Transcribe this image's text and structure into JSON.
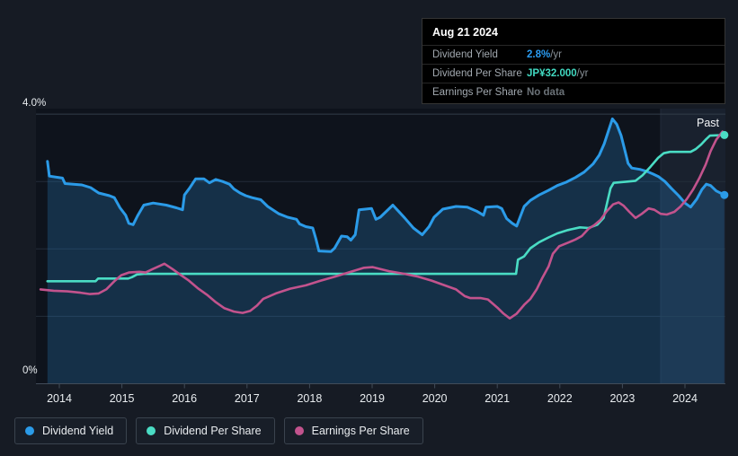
{
  "tooltip": {
    "date": "Aug 21 2024",
    "rows": [
      {
        "label": "Dividend Yield",
        "value": "2.8%",
        "suffix": " /yr",
        "value_color": "#2b9cf2"
      },
      {
        "label": "Dividend Per Share",
        "value": "JP¥32.000",
        "suffix": " /yr",
        "value_color": "#41d8c0"
      },
      {
        "label": "Earnings Per Share",
        "value": "No data",
        "suffix": "",
        "value_color": "#6b7278"
      }
    ]
  },
  "legend": [
    {
      "label": "Dividend Yield",
      "color": "#2b9be8"
    },
    {
      "label": "Dividend Per Share",
      "color": "#4adcc4"
    },
    {
      "label": "Earnings Per Share",
      "color": "#c2538d"
    }
  ],
  "chart_data": {
    "type": "line",
    "title": "Dividend history (yield, dividend per share, earnings per share)",
    "ylabel_top": "4.0%",
    "ylabel_bottom": "0%",
    "ylim": [
      0,
      4
    ],
    "xlim": [
      2013.62,
      2024.65
    ],
    "x_ticks": [
      2014,
      2015,
      2016,
      2017,
      2018,
      2019,
      2020,
      2021,
      2022,
      2023,
      2024
    ],
    "past_label": "Past",
    "past_start": 2023.61,
    "grid": true,
    "legend_position": "bottom",
    "series": [
      {
        "name": "Dividend Yield",
        "color": "#2b9be8",
        "width": 3,
        "fill": "rgba(44,130,201,0.26)",
        "end_marker": true,
        "points": [
          [
            2013.81,
            3.3
          ],
          [
            2013.84,
            3.08
          ],
          [
            2014.05,
            3.05
          ],
          [
            2014.09,
            2.97
          ],
          [
            2014.36,
            2.95
          ],
          [
            2014.5,
            2.91
          ],
          [
            2014.63,
            2.83
          ],
          [
            2014.8,
            2.79
          ],
          [
            2014.88,
            2.76
          ],
          [
            2014.97,
            2.61
          ],
          [
            2015.06,
            2.5
          ],
          [
            2015.11,
            2.38
          ],
          [
            2015.18,
            2.36
          ],
          [
            2015.25,
            2.49
          ],
          [
            2015.35,
            2.65
          ],
          [
            2015.5,
            2.68
          ],
          [
            2015.71,
            2.65
          ],
          [
            2015.87,
            2.61
          ],
          [
            2015.97,
            2.58
          ],
          [
            2016.0,
            2.8
          ],
          [
            2016.08,
            2.9
          ],
          [
            2016.18,
            3.04
          ],
          [
            2016.31,
            3.04
          ],
          [
            2016.4,
            2.98
          ],
          [
            2016.5,
            3.03
          ],
          [
            2016.61,
            3.0
          ],
          [
            2016.72,
            2.96
          ],
          [
            2016.79,
            2.89
          ],
          [
            2016.89,
            2.83
          ],
          [
            2016.98,
            2.79
          ],
          [
            2017.08,
            2.76
          ],
          [
            2017.22,
            2.73
          ],
          [
            2017.33,
            2.63
          ],
          [
            2017.51,
            2.52
          ],
          [
            2017.65,
            2.47
          ],
          [
            2017.79,
            2.44
          ],
          [
            2017.84,
            2.37
          ],
          [
            2017.94,
            2.33
          ],
          [
            2018.05,
            2.31
          ],
          [
            2018.1,
            2.15
          ],
          [
            2018.15,
            1.97
          ],
          [
            2018.34,
            1.96
          ],
          [
            2018.4,
            2.01
          ],
          [
            2018.51,
            2.19
          ],
          [
            2018.6,
            2.18
          ],
          [
            2018.66,
            2.13
          ],
          [
            2018.73,
            2.21
          ],
          [
            2018.79,
            2.58
          ],
          [
            2018.99,
            2.6
          ],
          [
            2019.06,
            2.44
          ],
          [
            2019.13,
            2.47
          ],
          [
            2019.33,
            2.65
          ],
          [
            2019.42,
            2.56
          ],
          [
            2019.52,
            2.46
          ],
          [
            2019.66,
            2.31
          ],
          [
            2019.8,
            2.21
          ],
          [
            2019.91,
            2.33
          ],
          [
            2019.99,
            2.47
          ],
          [
            2020.13,
            2.59
          ],
          [
            2020.34,
            2.63
          ],
          [
            2020.52,
            2.62
          ],
          [
            2020.67,
            2.56
          ],
          [
            2020.78,
            2.5
          ],
          [
            2020.82,
            2.62
          ],
          [
            2021.0,
            2.63
          ],
          [
            2021.07,
            2.6
          ],
          [
            2021.15,
            2.45
          ],
          [
            2021.24,
            2.38
          ],
          [
            2021.31,
            2.34
          ],
          [
            2021.43,
            2.63
          ],
          [
            2021.53,
            2.72
          ],
          [
            2021.67,
            2.8
          ],
          [
            2021.82,
            2.87
          ],
          [
            2021.96,
            2.94
          ],
          [
            2022.1,
            2.99
          ],
          [
            2022.25,
            3.06
          ],
          [
            2022.39,
            3.14
          ],
          [
            2022.53,
            3.26
          ],
          [
            2022.63,
            3.39
          ],
          [
            2022.71,
            3.56
          ],
          [
            2022.78,
            3.76
          ],
          [
            2022.84,
            3.93
          ],
          [
            2022.91,
            3.85
          ],
          [
            2022.98,
            3.68
          ],
          [
            2023.04,
            3.46
          ],
          [
            2023.09,
            3.27
          ],
          [
            2023.15,
            3.2
          ],
          [
            2023.28,
            3.18
          ],
          [
            2023.39,
            3.15
          ],
          [
            2023.49,
            3.11
          ],
          [
            2023.58,
            3.07
          ],
          [
            2023.68,
            3.0
          ],
          [
            2023.78,
            2.9
          ],
          [
            2023.9,
            2.79
          ],
          [
            2024.0,
            2.68
          ],
          [
            2024.09,
            2.62
          ],
          [
            2024.19,
            2.74
          ],
          [
            2024.27,
            2.88
          ],
          [
            2024.34,
            2.96
          ],
          [
            2024.41,
            2.94
          ],
          [
            2024.5,
            2.86
          ],
          [
            2024.63,
            2.8
          ]
        ]
      },
      {
        "name": "Dividend Per Share",
        "color": "#4adcc4",
        "width": 2.6,
        "fill": null,
        "end_marker": true,
        "points": [
          [
            2013.81,
            1.52
          ],
          [
            2014.58,
            1.52
          ],
          [
            2014.62,
            1.56
          ],
          [
            2015.1,
            1.56
          ],
          [
            2015.16,
            1.58
          ],
          [
            2015.24,
            1.62
          ],
          [
            2015.35,
            1.63
          ],
          [
            2021.3,
            1.63
          ],
          [
            2021.33,
            1.84
          ],
          [
            2021.43,
            1.89
          ],
          [
            2021.53,
            2.01
          ],
          [
            2021.67,
            2.1
          ],
          [
            2021.82,
            2.17
          ],
          [
            2021.96,
            2.23
          ],
          [
            2022.13,
            2.28
          ],
          [
            2022.32,
            2.32
          ],
          [
            2022.46,
            2.31
          ],
          [
            2022.6,
            2.36
          ],
          [
            2022.7,
            2.46
          ],
          [
            2022.76,
            2.7
          ],
          [
            2022.81,
            2.9
          ],
          [
            2022.86,
            2.98
          ],
          [
            2023.1,
            3.0
          ],
          [
            2023.21,
            3.01
          ],
          [
            2023.32,
            3.09
          ],
          [
            2023.45,
            3.22
          ],
          [
            2023.57,
            3.35
          ],
          [
            2023.66,
            3.42
          ],
          [
            2023.76,
            3.44
          ],
          [
            2024.09,
            3.44
          ],
          [
            2024.17,
            3.48
          ],
          [
            2024.26,
            3.55
          ],
          [
            2024.34,
            3.63
          ],
          [
            2024.4,
            3.68
          ],
          [
            2024.63,
            3.69
          ]
        ]
      },
      {
        "name": "Earnings Per Share",
        "color": "#c2538d",
        "width": 2.6,
        "fill": null,
        "end_marker": false,
        "points": [
          [
            2013.7,
            1.4
          ],
          [
            2013.91,
            1.38
          ],
          [
            2014.13,
            1.37
          ],
          [
            2014.34,
            1.35
          ],
          [
            2014.49,
            1.33
          ],
          [
            2014.63,
            1.34
          ],
          [
            2014.75,
            1.4
          ],
          [
            2014.88,
            1.52
          ],
          [
            2014.99,
            1.61
          ],
          [
            2015.11,
            1.65
          ],
          [
            2015.28,
            1.66
          ],
          [
            2015.38,
            1.65
          ],
          [
            2015.49,
            1.7
          ],
          [
            2015.61,
            1.75
          ],
          [
            2015.68,
            1.78
          ],
          [
            2015.81,
            1.7
          ],
          [
            2015.93,
            1.62
          ],
          [
            2016.07,
            1.53
          ],
          [
            2016.21,
            1.42
          ],
          [
            2016.36,
            1.32
          ],
          [
            2016.5,
            1.21
          ],
          [
            2016.64,
            1.12
          ],
          [
            2016.79,
            1.07
          ],
          [
            2016.93,
            1.05
          ],
          [
            2017.05,
            1.08
          ],
          [
            2017.16,
            1.16
          ],
          [
            2017.26,
            1.26
          ],
          [
            2017.46,
            1.34
          ],
          [
            2017.69,
            1.41
          ],
          [
            2017.94,
            1.46
          ],
          [
            2018.18,
            1.53
          ],
          [
            2018.41,
            1.59
          ],
          [
            2018.66,
            1.66
          ],
          [
            2018.87,
            1.72
          ],
          [
            2019.01,
            1.73
          ],
          [
            2019.27,
            1.67
          ],
          [
            2019.52,
            1.63
          ],
          [
            2019.73,
            1.59
          ],
          [
            2019.95,
            1.53
          ],
          [
            2020.16,
            1.46
          ],
          [
            2020.34,
            1.4
          ],
          [
            2020.48,
            1.3
          ],
          [
            2020.57,
            1.27
          ],
          [
            2020.74,
            1.27
          ],
          [
            2020.85,
            1.25
          ],
          [
            2021.0,
            1.13
          ],
          [
            2021.1,
            1.04
          ],
          [
            2021.2,
            0.97
          ],
          [
            2021.31,
            1.04
          ],
          [
            2021.43,
            1.17
          ],
          [
            2021.53,
            1.26
          ],
          [
            2021.63,
            1.4
          ],
          [
            2021.72,
            1.57
          ],
          [
            2021.82,
            1.74
          ],
          [
            2021.89,
            1.93
          ],
          [
            2021.99,
            2.04
          ],
          [
            2022.15,
            2.1
          ],
          [
            2022.25,
            2.14
          ],
          [
            2022.35,
            2.19
          ],
          [
            2022.46,
            2.3
          ],
          [
            2022.56,
            2.36
          ],
          [
            2022.65,
            2.43
          ],
          [
            2022.75,
            2.56
          ],
          [
            2022.85,
            2.66
          ],
          [
            2022.94,
            2.69
          ],
          [
            2023.02,
            2.64
          ],
          [
            2023.11,
            2.55
          ],
          [
            2023.21,
            2.46
          ],
          [
            2023.31,
            2.52
          ],
          [
            2023.42,
            2.6
          ],
          [
            2023.51,
            2.58
          ],
          [
            2023.61,
            2.52
          ],
          [
            2023.71,
            2.51
          ],
          [
            2023.83,
            2.55
          ],
          [
            2023.93,
            2.63
          ],
          [
            2024.03,
            2.74
          ],
          [
            2024.13,
            2.88
          ],
          [
            2024.23,
            3.05
          ],
          [
            2024.33,
            3.25
          ],
          [
            2024.41,
            3.45
          ],
          [
            2024.5,
            3.62
          ],
          [
            2024.6,
            3.74
          ]
        ]
      }
    ]
  }
}
